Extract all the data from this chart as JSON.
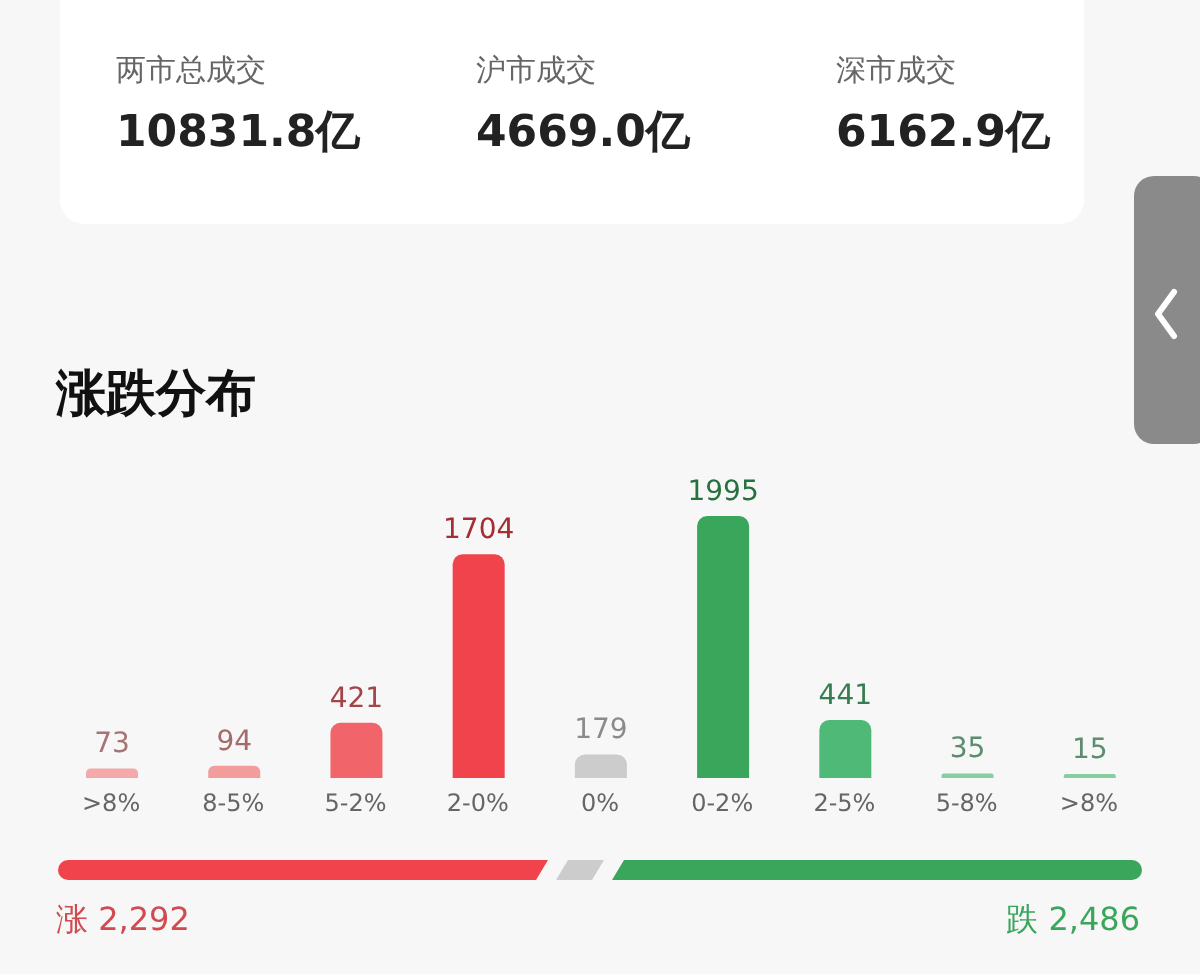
{
  "chart_data": {
    "type": "bar",
    "title": "涨跌分布",
    "categories": [
      ">8%",
      "8-5%",
      "5-2%",
      "2-0%",
      "0%",
      "0-2%",
      "2-5%",
      "5-8%",
      ">8%"
    ],
    "values": [
      73,
      94,
      421,
      1704,
      179,
      1995,
      441,
      35,
      15
    ],
    "colors": [
      "#f4aaaa",
      "#f29c9c",
      "#f0646a",
      "#f0434c",
      "#cccccc",
      "#3aa65c",
      "#4fb978",
      "#86cfa2",
      "#86cfa2"
    ],
    "data_labels": true,
    "annotations": [
      "两市总成交",
      "10831.8亿",
      "沪市成交",
      "4669.0亿",
      "深市成交",
      "6162.9亿",
      "涨 2,292",
      "跌 2,486"
    ]
  }
}
